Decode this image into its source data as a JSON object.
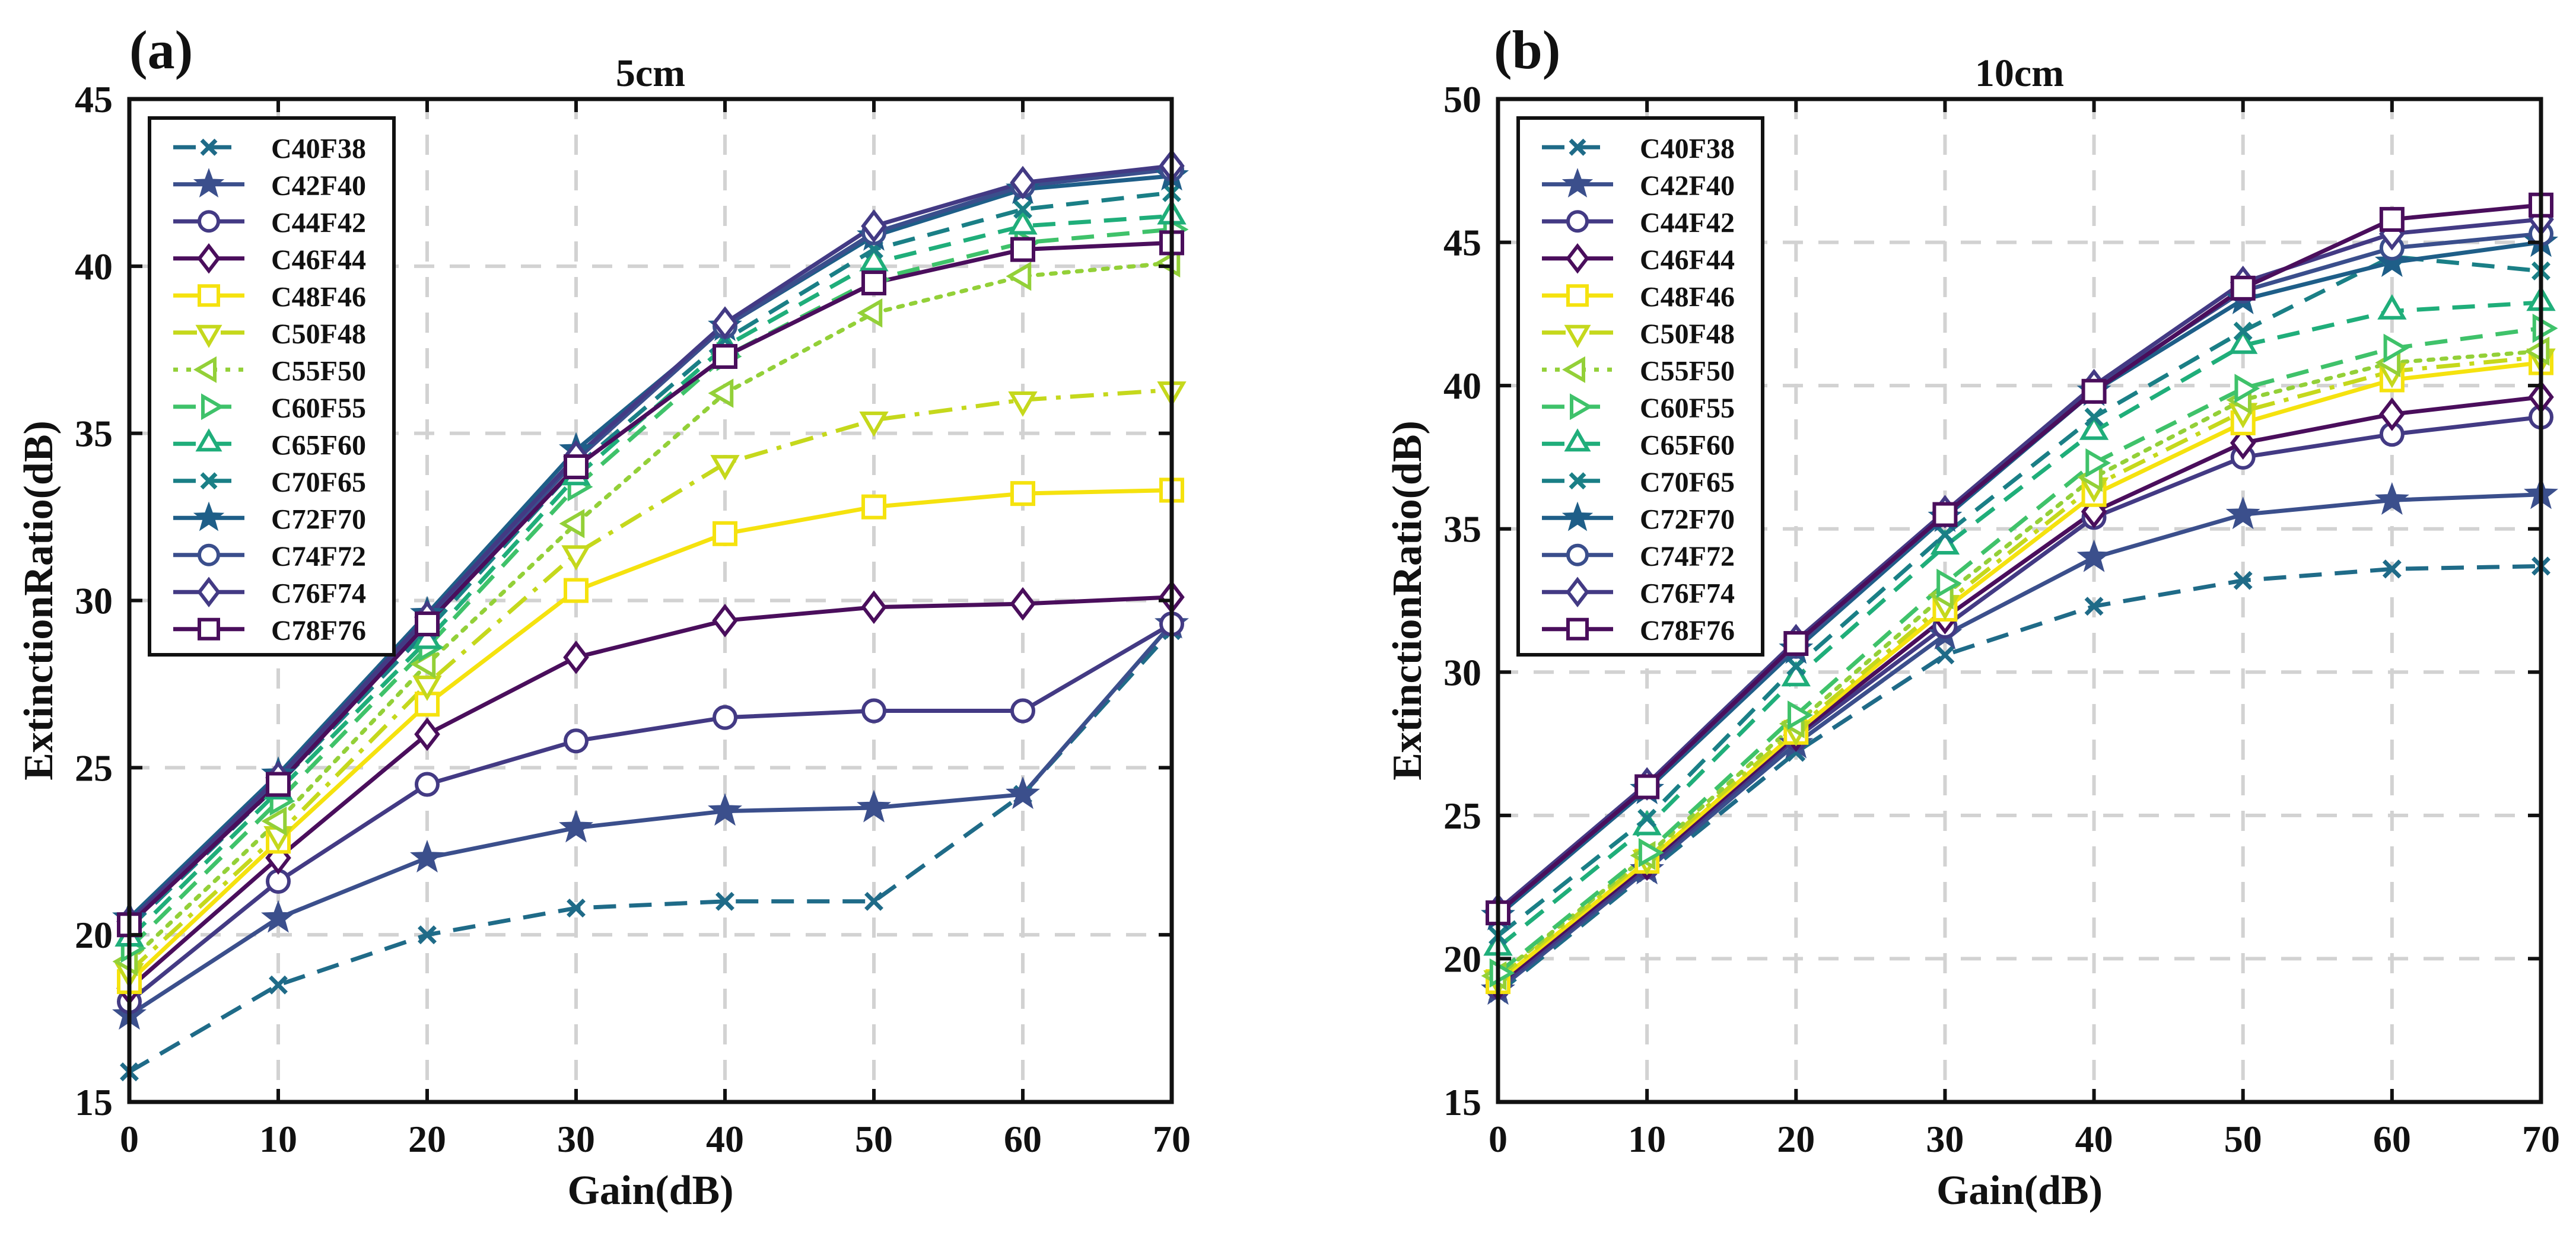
{
  "figure": {
    "panel_labels": [
      "(a)",
      "(b)"
    ]
  },
  "chart_data": [
    {
      "type": "line",
      "panel": "(a)",
      "title": "5cm",
      "xlabel": "Gain(dB)",
      "ylabel": "ExtinctionRatio(dB)",
      "xlim": [
        0,
        70
      ],
      "ylim": [
        15,
        45
      ],
      "xticks": [
        0,
        10,
        20,
        30,
        40,
        50,
        60,
        70
      ],
      "yticks": [
        15,
        20,
        25,
        30,
        35,
        40,
        45
      ],
      "grid": true,
      "legend_position": "top-left",
      "x": [
        0,
        10,
        20,
        30,
        40,
        50,
        60,
        70
      ],
      "series": [
        {
          "name": "C40F38",
          "values": [
            15.9,
            18.5,
            20.0,
            20.8,
            21.0,
            21.0,
            24.2,
            29.1
          ],
          "color": "#1f6b88",
          "dash": "dashed",
          "marker": "x"
        },
        {
          "name": "C42F40",
          "values": [
            17.6,
            20.5,
            22.3,
            23.2,
            23.7,
            23.8,
            24.2,
            29.3
          ],
          "color": "#3b4f8c",
          "dash": "solid",
          "marker": "star"
        },
        {
          "name": "C44F42",
          "values": [
            18.0,
            21.6,
            24.5,
            25.8,
            26.5,
            26.7,
            26.7,
            29.3
          ],
          "color": "#433a84",
          "dash": "solid",
          "marker": "circle"
        },
        {
          "name": "C46F44",
          "values": [
            18.4,
            22.3,
            26.0,
            28.3,
            29.4,
            29.8,
            29.9,
            30.1
          ],
          "color": "#4a0e5c",
          "dash": "solid",
          "marker": "diamond"
        },
        {
          "name": "C48F46",
          "values": [
            18.6,
            22.8,
            26.9,
            30.3,
            32.0,
            32.8,
            33.2,
            33.3
          ],
          "color": "#f5e20e",
          "dash": "solid",
          "marker": "square"
        },
        {
          "name": "C50F48",
          "values": [
            18.9,
            23.0,
            27.5,
            31.4,
            34.1,
            35.4,
            36.0,
            36.3
          ],
          "color": "#c5d81c",
          "dash": "dashdot",
          "marker": "triangle-down"
        },
        {
          "name": "C55F50",
          "values": [
            19.2,
            23.4,
            28.1,
            32.3,
            36.2,
            38.6,
            39.7,
            40.1
          ],
          "color": "#93d038",
          "dash": "dotted",
          "marker": "triangle-left"
        },
        {
          "name": "C60F55",
          "values": [
            19.6,
            24.0,
            28.6,
            33.4,
            37.3,
            39.6,
            40.7,
            41.1
          ],
          "color": "#3fc26a",
          "dash": "dashed",
          "marker": "triangle-right"
        },
        {
          "name": "C65F60",
          "values": [
            19.9,
            24.3,
            28.8,
            33.7,
            37.6,
            40.1,
            41.2,
            41.5
          ],
          "color": "#1fae7a",
          "dash": "dashed",
          "marker": "triangle-up"
        },
        {
          "name": "C70F65",
          "values": [
            20.2,
            24.5,
            29.1,
            34.0,
            37.8,
            40.5,
            41.7,
            42.2
          ],
          "color": "#1a7f86",
          "dash": "dashed",
          "marker": "x"
        },
        {
          "name": "C72F70",
          "values": [
            20.5,
            24.8,
            29.6,
            34.5,
            38.2,
            40.9,
            42.3,
            42.7
          ],
          "color": "#1e5e88",
          "dash": "solid",
          "marker": "star"
        },
        {
          "name": "C74F72",
          "values": [
            20.3,
            24.6,
            29.4,
            34.2,
            38.2,
            41.0,
            42.4,
            42.9
          ],
          "color": "#3a4e8c",
          "dash": "solid",
          "marker": "circle"
        },
        {
          "name": "C76F74",
          "values": [
            20.4,
            24.7,
            29.5,
            34.3,
            38.3,
            41.2,
            42.5,
            43.0
          ],
          "color": "#433a84",
          "dash": "solid",
          "marker": "diamond"
        },
        {
          "name": "C78F76",
          "values": [
            20.3,
            24.5,
            29.3,
            34.0,
            37.3,
            39.5,
            40.5,
            40.7
          ],
          "color": "#4a0e5c",
          "dash": "solid",
          "marker": "square"
        }
      ]
    },
    {
      "type": "line",
      "panel": "(b)",
      "title": "10cm",
      "xlabel": "Gain(dB)",
      "ylabel": "ExtinctionRatio(dB)",
      "xlim": [
        0,
        70
      ],
      "ylim": [
        15,
        50
      ],
      "xticks": [
        0,
        10,
        20,
        30,
        40,
        50,
        60,
        70
      ],
      "yticks": [
        15,
        20,
        25,
        30,
        35,
        40,
        45,
        50
      ],
      "grid": true,
      "legend_position": "top-left",
      "x": [
        0,
        10,
        20,
        30,
        40,
        50,
        60,
        70
      ],
      "series": [
        {
          "name": "C40F38",
          "values": [
            18.8,
            23.0,
            27.2,
            30.6,
            32.3,
            33.2,
            33.6,
            33.7
          ],
          "color": "#1f6b88",
          "dash": "dashed",
          "marker": "x"
        },
        {
          "name": "C42F40",
          "values": [
            18.9,
            23.1,
            27.5,
            31.3,
            34.0,
            35.5,
            36.0,
            36.2
          ],
          "color": "#3b4f8c",
          "dash": "solid",
          "marker": "star"
        },
        {
          "name": "C44F42",
          "values": [
            19.0,
            23.2,
            27.7,
            31.6,
            35.4,
            37.5,
            38.3,
            38.9
          ],
          "color": "#433a84",
          "dash": "solid",
          "marker": "circle"
        },
        {
          "name": "C46F44",
          "values": [
            19.1,
            23.3,
            27.8,
            31.9,
            35.6,
            38.0,
            39.0,
            39.6
          ],
          "color": "#4a0e5c",
          "dash": "solid",
          "marker": "diamond"
        },
        {
          "name": "C48F46",
          "values": [
            19.2,
            23.4,
            27.9,
            32.2,
            36.2,
            38.7,
            40.2,
            40.8
          ],
          "color": "#f5e20e",
          "dash": "solid",
          "marker": "square"
        },
        {
          "name": "C50F48",
          "values": [
            19.3,
            23.5,
            28.0,
            32.4,
            36.5,
            39.1,
            40.5,
            41.0
          ],
          "color": "#c5d81c",
          "dash": "dashdot",
          "marker": "triangle-down"
        },
        {
          "name": "C55F50",
          "values": [
            19.4,
            23.6,
            28.2,
            32.7,
            36.8,
            39.5,
            40.8,
            41.2
          ],
          "color": "#93d038",
          "dash": "dotted",
          "marker": "triangle-left"
        },
        {
          "name": "C60F55",
          "values": [
            19.5,
            23.7,
            28.5,
            33.1,
            37.3,
            39.9,
            41.3,
            42.0
          ],
          "color": "#3fc26a",
          "dash": "dashed",
          "marker": "triangle-right"
        },
        {
          "name": "C65F60",
          "values": [
            20.4,
            24.6,
            29.8,
            34.4,
            38.4,
            41.4,
            42.6,
            42.9
          ],
          "color": "#1fae7a",
          "dash": "dashed",
          "marker": "triangle-up"
        },
        {
          "name": "C70F65",
          "values": [
            20.8,
            24.9,
            30.2,
            34.8,
            38.9,
            41.9,
            44.5,
            44.0
          ],
          "color": "#1a7f86",
          "dash": "dashed",
          "marker": "x"
        },
        {
          "name": "C72F70",
          "values": [
            21.5,
            25.9,
            30.8,
            35.4,
            39.8,
            43.0,
            44.3,
            45.0
          ],
          "color": "#1e5e88",
          "dash": "solid",
          "marker": "star"
        },
        {
          "name": "C74F72",
          "values": [
            21.6,
            26.0,
            30.9,
            35.5,
            39.9,
            43.3,
            44.8,
            45.3
          ],
          "color": "#3a4e8c",
          "dash": "solid",
          "marker": "circle"
        },
        {
          "name": "C76F74",
          "values": [
            21.7,
            26.1,
            31.1,
            35.6,
            40.0,
            43.6,
            45.3,
            45.8
          ],
          "color": "#433a84",
          "dash": "solid",
          "marker": "diamond"
        },
        {
          "name": "C78F76",
          "values": [
            21.6,
            26.0,
            31.0,
            35.5,
            39.8,
            43.4,
            45.8,
            46.3
          ],
          "color": "#4a0e5c",
          "dash": "solid",
          "marker": "square"
        }
      ]
    }
  ]
}
